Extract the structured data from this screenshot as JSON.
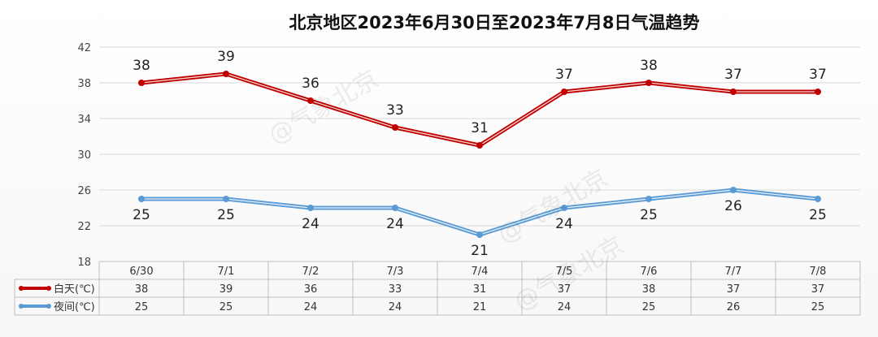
{
  "chart_data": {
    "type": "line",
    "title": "北京地区2023年6月30日至2023年7月8日气温趋势",
    "categories": [
      "6/30",
      "7/1",
      "7/2",
      "7/3",
      "7/4",
      "7/5",
      "7/6",
      "7/7",
      "7/8"
    ],
    "ylim": [
      18,
      42
    ],
    "yticks": [
      18,
      22,
      26,
      30,
      34,
      38,
      42
    ],
    "grid": true,
    "legend": "data-table-left",
    "series": [
      {
        "name": "白天(℃)",
        "values": [
          38,
          39,
          36,
          33,
          31,
          37,
          38,
          37,
          37
        ],
        "color": "#c00000",
        "label_position": "above"
      },
      {
        "name": "夜间(℃)",
        "values": [
          25,
          25,
          24,
          24,
          21,
          24,
          25,
          26,
          25
        ],
        "color": "#5b9bd5",
        "label_position": "below"
      }
    ]
  },
  "watermarks": [
    "@气象北京",
    "@气象北京",
    "@气象北京"
  ]
}
